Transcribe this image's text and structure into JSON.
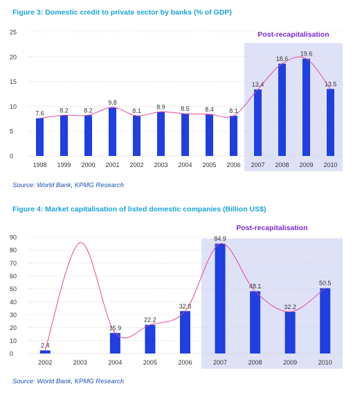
{
  "figures": [
    {
      "title": "Figure 3: Domestic credit to private sector by banks (% of GDP)",
      "source": "Source: World Bank, KPMG Research",
      "highlight_label": "Post-recapitalisation"
    },
    {
      "title": "Figure 4: Market capitalisation of listed domestic companies (Billion US$)",
      "source": "Source: World Bank, KPMG Research",
      "highlight_label": "Post-recapitalisation"
    }
  ],
  "colors": {
    "bar": "#1f3fe0",
    "trend": "#e0479c",
    "highlight": "#dfe2f7",
    "highlight_label": "#7a2ad6",
    "title": "#1aa3d8",
    "source": "#1a4fb0",
    "grid": "#cfcfcf",
    "axis_text": "#333333"
  },
  "chart_data": [
    {
      "type": "bar",
      "categories": [
        "1998",
        "1999",
        "2000",
        "2001",
        "2002",
        "2003",
        "2004",
        "2005",
        "2006",
        "2007",
        "2008",
        "2009",
        "2010"
      ],
      "values": [
        7.6,
        8.2,
        8.2,
        9.8,
        8.1,
        8.9,
        8.5,
        8.4,
        8.1,
        13.4,
        18.6,
        19.6,
        13.5
      ],
      "value_labels": [
        "7.6",
        "8.2",
        "8.2",
        "9.8",
        "8.1",
        "8.9",
        "8.5",
        "8.4",
        "8.1",
        "13.4",
        "18.6",
        "19.6",
        "13.5"
      ],
      "yticks": [
        "0",
        "5",
        "10",
        "15",
        "20",
        "25"
      ],
      "ylim": [
        0,
        25
      ],
      "highlight_range": [
        "2007",
        "2010"
      ],
      "trendline": true,
      "grid": true
    },
    {
      "type": "bar",
      "categories": [
        "2002",
        "2003",
        "2004",
        "2005",
        "2006",
        "2007",
        "2008",
        "2009",
        "2010"
      ],
      "values": [
        2.4,
        0,
        15.9,
        22.2,
        32.8,
        84.9,
        48.1,
        32.2,
        50.5
      ],
      "value_labels": [
        "2.4",
        "",
        "15.9",
        "22.2",
        "32.8",
        "84.9",
        "48.1",
        "32.2",
        "50.5"
      ],
      "yticks": [
        "0",
        "10",
        "20",
        "30",
        "40",
        "50",
        "60",
        "70",
        "80",
        "90"
      ],
      "ylim": [
        0,
        90
      ],
      "highlight_range": [
        "2007",
        "2010"
      ],
      "trendline": true,
      "grid": true
    }
  ]
}
